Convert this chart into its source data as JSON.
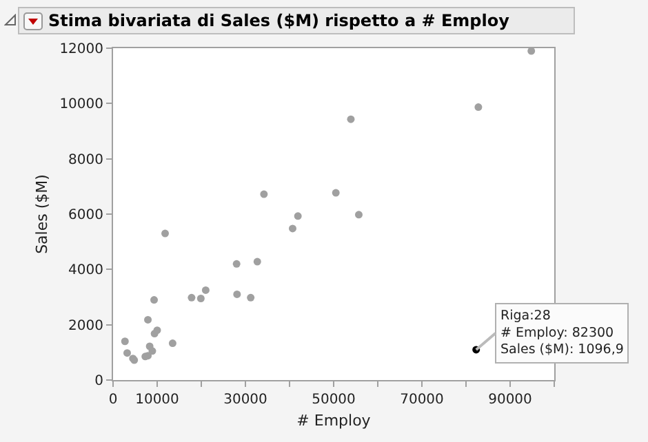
{
  "chart_data": {
    "type": "scatter",
    "title": "Stima bivariata di Sales ($M) rispetto a # Employ",
    "xlabel": "# Employ",
    "ylabel": "Sales ($M)",
    "x": [
      2700,
      3200,
      4500,
      4800,
      7300,
      7900,
      8300,
      8900,
      7900,
      9300,
      9400,
      10000,
      11800,
      13500,
      17800,
      19900,
      21000,
      28000,
      28100,
      31200,
      32700,
      34200,
      40700,
      41900,
      50500,
      53900,
      55700,
      82800,
      94800,
      82300
    ],
    "series": [
      {
        "colors": [
          "#a0a0a0",
          "#a0a0a0",
          "#a0a0a0",
          "#a0a0a0",
          "#a0a0a0",
          "#a0a0a0",
          "#a0a0a0",
          "#a0a0a0",
          "#a0a0a0",
          "#a0a0a0",
          "#a0a0a0",
          "#a0a0a0",
          "#a0a0a0",
          "#a0a0a0",
          "#a0a0a0",
          "#a0a0a0",
          "#a0a0a0",
          "#a0a0a0",
          "#a0a0a0",
          "#a0a0a0",
          "#a0a0a0",
          "#a0a0a0",
          "#a0a0a0",
          "#a0a0a0",
          "#a0a0a0",
          "#a0a0a0",
          "#a0a0a0",
          "#a0a0a0",
          "#a0a0a0",
          "#000000"
        ],
        "values": [
          1400,
          980,
          780,
          720,
          850,
          880,
          1220,
          1050,
          2180,
          2900,
          1680,
          1800,
          5300,
          1330,
          2980,
          2950,
          3250,
          4200,
          3100,
          2980,
          4280,
          6720,
          5480,
          5930,
          6770,
          9430,
          5980,
          9870,
          11900,
          1096.9
        ]
      }
    ],
    "xlim": [
      0,
      100000
    ],
    "xticks": [
      0,
      10000,
      {
        "value": 20000,
        "label": null
      },
      30000,
      {
        "value": 40000,
        "label": null
      },
      50000,
      {
        "value": 60000,
        "label": null
      },
      70000,
      {
        "value": 80000,
        "label": null
      },
      90000,
      {
        "value": 100000,
        "label": null
      }
    ],
    "ylim": [
      0,
      12000
    ],
    "yticks": [
      0,
      2000,
      4000,
      6000,
      8000,
      10000,
      12000
    ],
    "annotations": [
      {
        "text": "Riga:28\n# Employ: 82300\nSales ($M): 1096,9",
        "x": 82300,
        "y": 1096.9
      }
    ],
    "marker": "circle"
  }
}
